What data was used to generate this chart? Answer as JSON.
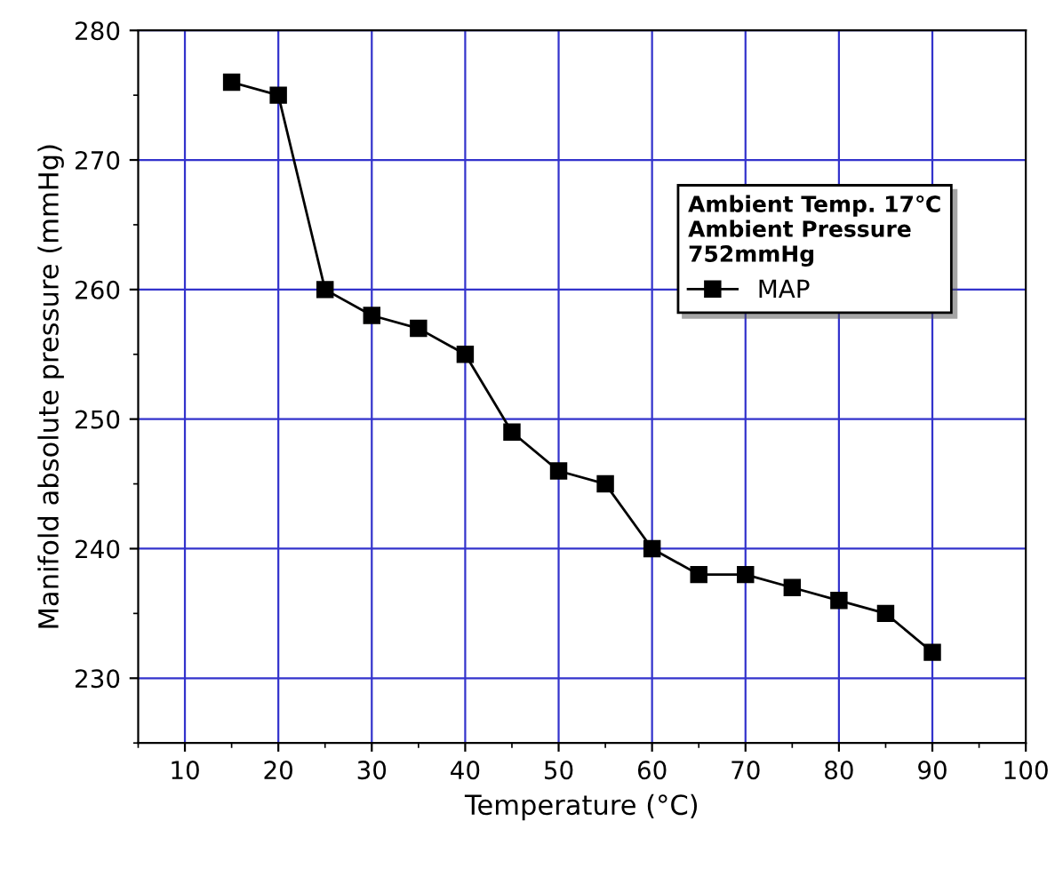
{
  "chart_data": {
    "type": "line",
    "xlabel": "Temperature (°C)",
    "ylabel": "Manifold absolute pressure (mmHg)",
    "legend_title": "Ambient Temp. 17℃\nAmbient Pressure\n752mmHg",
    "x": [
      15,
      20,
      25,
      30,
      35,
      40,
      45,
      50,
      55,
      60,
      65,
      70,
      75,
      80,
      85,
      90
    ],
    "series": [
      {
        "name": "MAP",
        "color": "#000000",
        "values": [
          276,
          275,
          260,
          258,
          257,
          255,
          249,
          246,
          245,
          240,
          238,
          238,
          237,
          236,
          235,
          232
        ]
      }
    ],
    "xlim": [
      5,
      100
    ],
    "xticks": [
      10,
      20,
      30,
      40,
      50,
      60,
      70,
      80,
      90,
      100
    ],
    "ylim": [
      225,
      280
    ],
    "yticks": [
      230,
      240,
      250,
      260,
      270,
      280
    ],
    "grid": true,
    "legend": "top right",
    "marker": "square",
    "line_style": "solid"
  }
}
